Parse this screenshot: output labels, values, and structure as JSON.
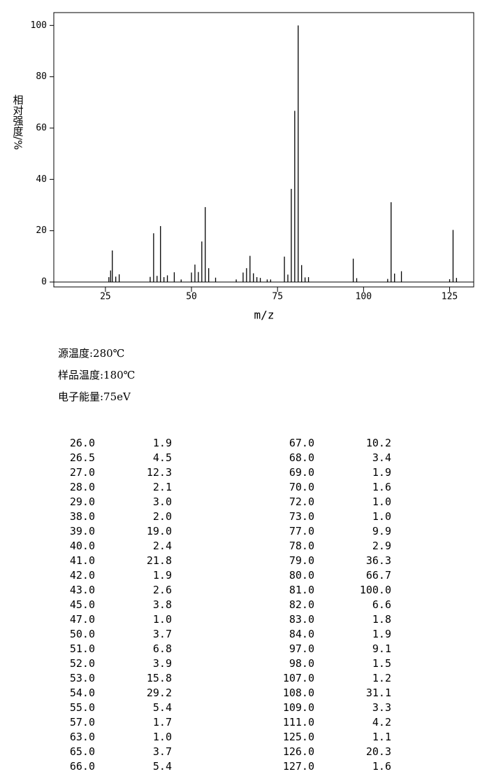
{
  "chart_data": {
    "type": "bar",
    "xlabel": "m/z",
    "ylabel": "相对强度/%",
    "xlim": [
      10,
      132
    ],
    "ylim": [
      0,
      105
    ],
    "xticks": [
      25,
      50,
      75,
      100,
      125
    ],
    "yticks": [
      0,
      20,
      40,
      60,
      80,
      100
    ],
    "color": "#000000",
    "x": [
      26,
      26.5,
      27,
      28,
      29,
      38,
      39,
      40,
      41,
      42,
      43,
      45,
      47,
      50,
      51,
      52,
      53,
      54,
      55,
      57,
      63,
      65,
      66,
      67,
      68,
      69,
      70,
      72,
      73,
      77,
      78,
      79,
      80,
      81,
      82,
      83,
      84,
      97,
      98,
      107,
      108,
      109,
      111,
      125,
      126,
      127
    ],
    "x_labels": [
      "26.0",
      "26.5",
      "27.0",
      "28.0",
      "29.0",
      "38.0",
      "39.0",
      "40.0",
      "41.0",
      "42.0",
      "43.0",
      "45.0",
      "47.0",
      "50.0",
      "51.0",
      "52.0",
      "53.0",
      "54.0",
      "55.0",
      "57.0",
      "63.0",
      "65.0",
      "66.0",
      "67.0",
      "68.0",
      "69.0",
      "70.0",
      "72.0",
      "73.0",
      "77.0",
      "78.0",
      "79.0",
      "80.0",
      "81.0",
      "82.0",
      "83.0",
      "84.0",
      "97.0",
      "98.0",
      "107.0",
      "108.0",
      "109.0",
      "111.0",
      "125.0",
      "126.0",
      "127.0"
    ],
    "values": [
      1.9,
      4.5,
      12.3,
      2.1,
      3.0,
      2.0,
      19.0,
      2.4,
      21.8,
      1.9,
      2.6,
      3.8,
      1.0,
      3.7,
      6.8,
      3.9,
      15.8,
      29.2,
      5.4,
      1.7,
      1.0,
      3.7,
      5.4,
      10.2,
      3.4,
      1.9,
      1.6,
      1.0,
      1.0,
      9.9,
      2.9,
      36.3,
      66.7,
      100.0,
      6.6,
      1.8,
      1.9,
      9.1,
      1.5,
      1.2,
      31.1,
      3.3,
      4.2,
      1.1,
      20.3,
      1.6
    ],
    "value_labels": [
      "1.9",
      "4.5",
      "12.3",
      "2.1",
      "3.0",
      "2.0",
      "19.0",
      "2.4",
      "21.8",
      "1.9",
      "2.6",
      "3.8",
      "1.0",
      "3.7",
      "6.8",
      "3.9",
      "15.8",
      "29.2",
      "5.4",
      "1.7",
      "1.0",
      "3.7",
      "5.4",
      "10.2",
      "3.4",
      "1.9",
      "1.6",
      "1.0",
      "1.0",
      "9.9",
      "2.9",
      "36.3",
      "66.7",
      "100.0",
      "6.6",
      "1.8",
      "1.9",
      "9.1",
      "1.5",
      "1.2",
      "31.1",
      "3.3",
      "4.2",
      "1.1",
      "20.3",
      "1.6"
    ]
  },
  "info": [
    "源温度:280℃",
    "样品温度:180℃",
    "电子能量:75eV"
  ]
}
